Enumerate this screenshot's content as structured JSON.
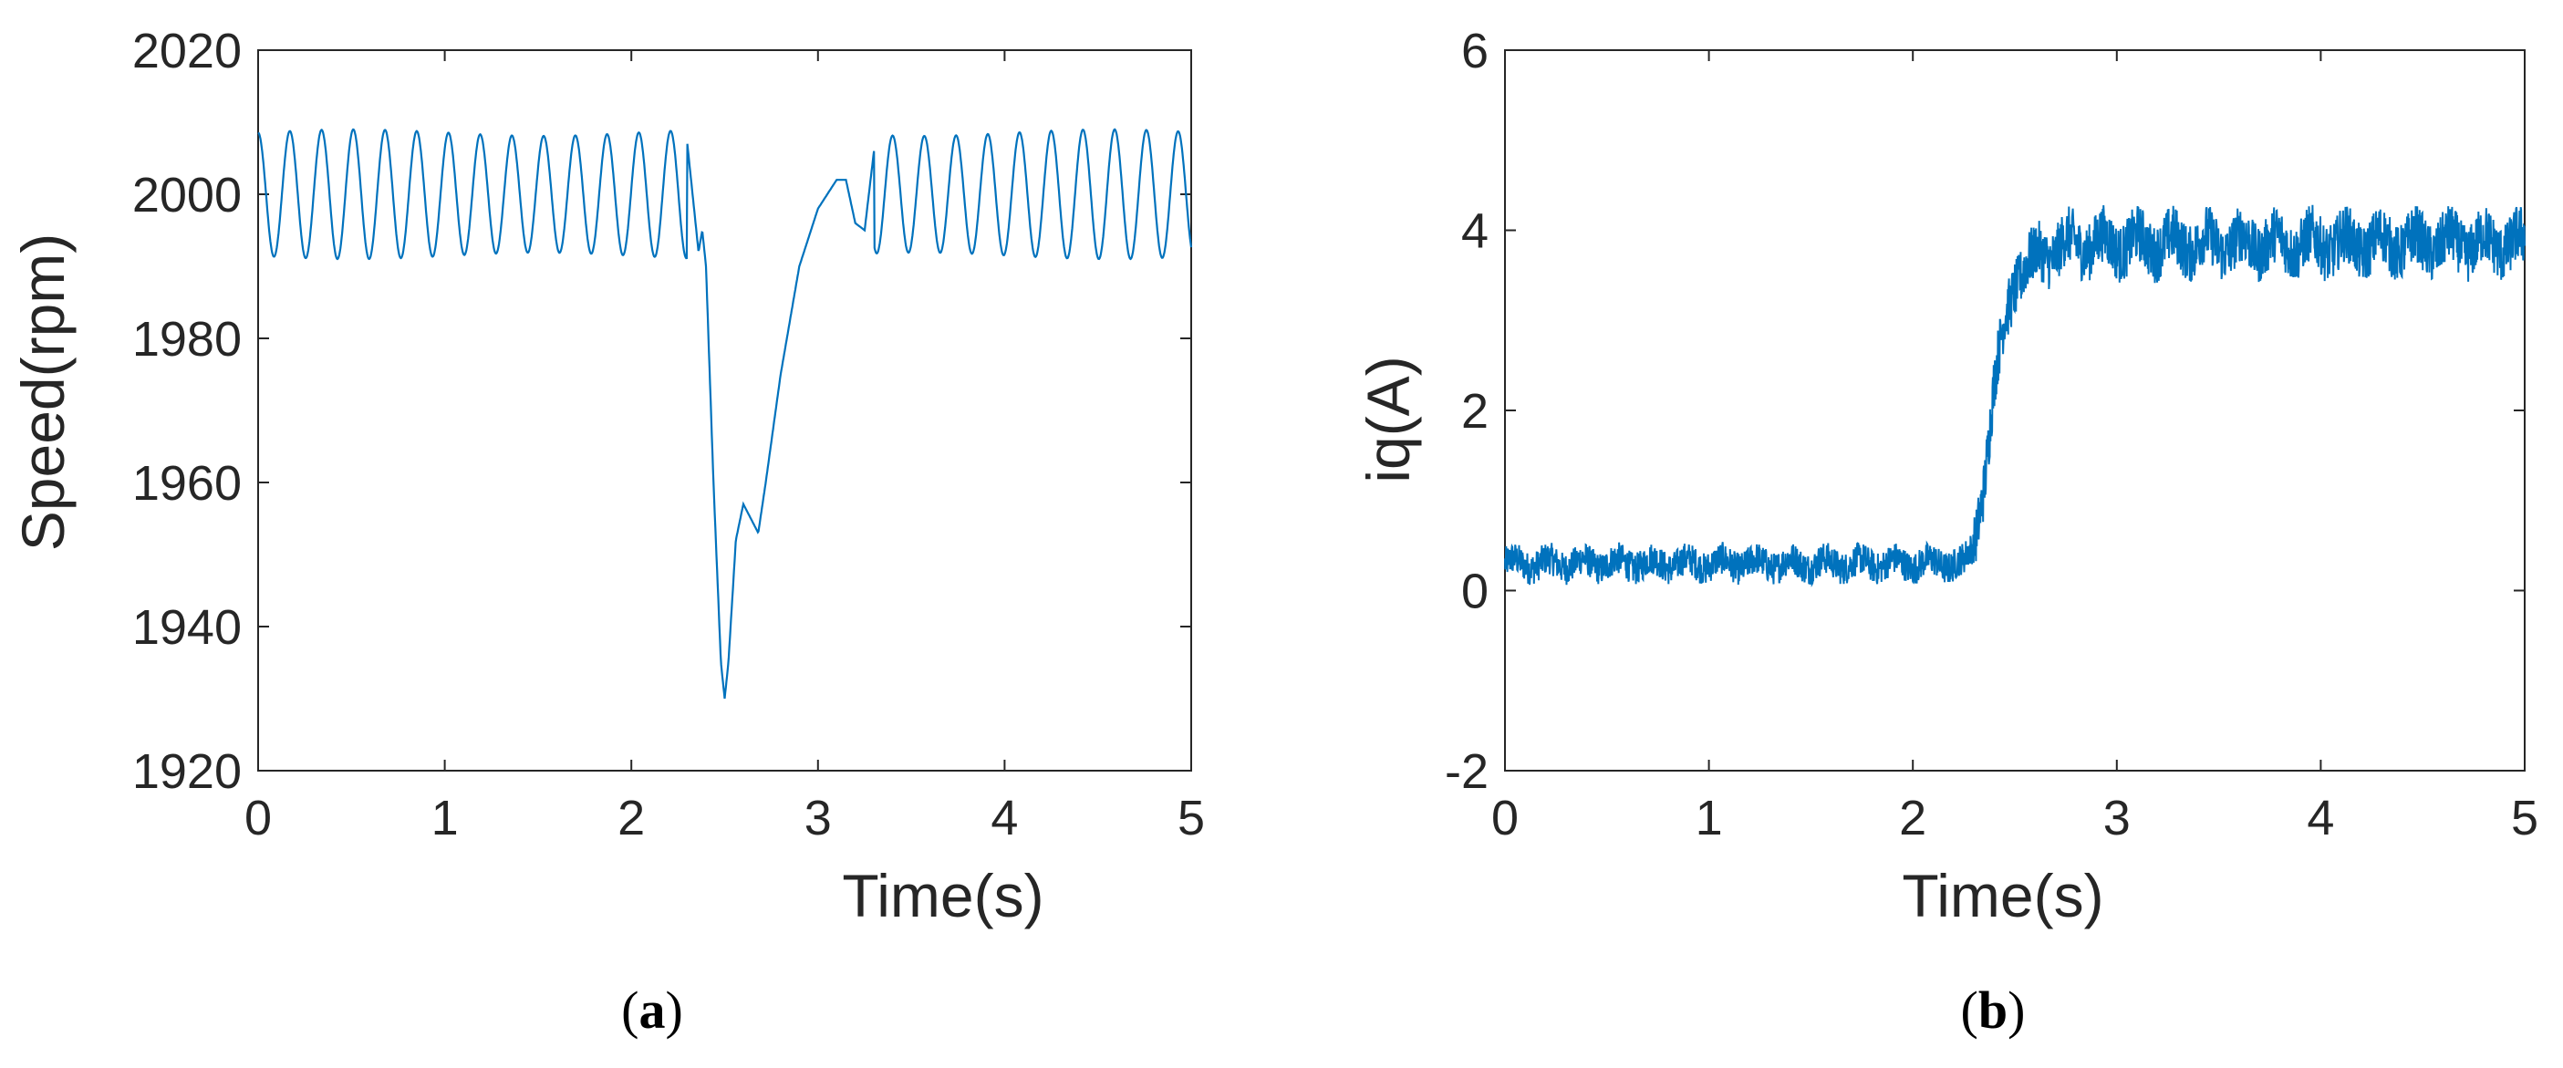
{
  "chart_data": [
    {
      "type": "line",
      "xlabel": "Time(s)",
      "ylabel": "Speed(rpm)",
      "xlim": [
        0,
        5
      ],
      "ylim": [
        1920,
        2020
      ],
      "xticks": [
        "0",
        "1",
        "2",
        "3",
        "4",
        "5"
      ],
      "yticks": [
        "1920",
        "1940",
        "1960",
        "1980",
        "2000",
        "2020"
      ],
      "caption_letter": "a",
      "grid": false,
      "line_color": "#0072BD",
      "steady_state": {
        "mean": 2000,
        "amplitude": 9,
        "oscillation_period_s": 0.17
      },
      "series": [
        {
          "x": [
            0,
            2.3,
            2.36,
            2.38,
            2.4,
            2.44,
            2.48,
            2.5,
            2.52,
            2.56,
            2.6,
            2.64,
            2.68,
            2.72,
            2.8,
            2.9,
            3.0,
            3.1,
            3.15,
            3.2,
            3.25,
            3.3,
            5
          ],
          "y": [
            2008,
            2007,
            1992,
            1995,
            1990,
            1960,
            1935,
            1930,
            1935,
            1952,
            1957,
            1955,
            1953,
            1960,
            1975,
            1990,
            1998,
            2002,
            2002,
            1996,
            1995,
            2006,
            2008
          ]
        }
      ]
    },
    {
      "type": "line",
      "xlabel": "Time(s)",
      "ylabel": "iq(A)",
      "xlim": [
        0,
        5
      ],
      "ylim": [
        -2,
        6
      ],
      "xticks": [
        "0",
        "1",
        "2",
        "3",
        "4",
        "5"
      ],
      "yticks": [
        "-2",
        "0",
        "2",
        "4",
        "6"
      ],
      "caption_letter": "b",
      "grid": false,
      "line_color": "#0072BD",
      "noise_band": {
        "before_step": 0.18,
        "after_step": 0.32
      },
      "series": [
        {
          "x": [
            0,
            2.0,
            2.25,
            2.3,
            2.35,
            2.4,
            2.45,
            2.5,
            2.55,
            2.6,
            2.7,
            2.8,
            3.0,
            4.0,
            5.0
          ],
          "y": [
            0.3,
            0.3,
            0.3,
            0.5,
            1.2,
            2.3,
            3.0,
            3.4,
            3.6,
            3.7,
            3.8,
            3.85,
            3.85,
            3.85,
            3.85
          ]
        }
      ]
    }
  ]
}
